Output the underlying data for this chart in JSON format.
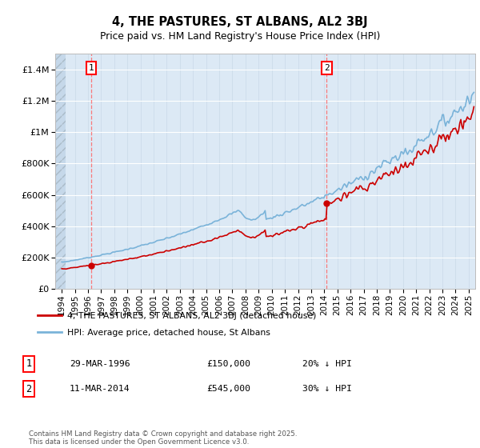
{
  "title": "4, THE PASTURES, ST ALBANS, AL2 3BJ",
  "subtitle": "Price paid vs. HM Land Registry's House Price Index (HPI)",
  "background_color": "#dce9f5",
  "hpi_color": "#7ab3d9",
  "price_color": "#cc0000",
  "dashed_vline_color": "#ff6666",
  "ylim": [
    0,
    1500000
  ],
  "yticks": [
    0,
    200000,
    400000,
    600000,
    800000,
    1000000,
    1200000,
    1400000
  ],
  "transaction1": {
    "date_x": 1996.23,
    "price": 150000,
    "label": "1",
    "annotation": "29-MAR-1996",
    "annotation2": "£150,000",
    "annotation3": "20% ↓ HPI"
  },
  "transaction2": {
    "date_x": 2014.19,
    "price": 545000,
    "label": "2",
    "annotation": "11-MAR-2014",
    "annotation2": "£545,000",
    "annotation3": "30% ↓ HPI"
  },
  "legend1": "4, THE PASTURES, ST ALBANS, AL2 3BJ (detached house)",
  "legend2": "HPI: Average price, detached house, St Albans",
  "footer": "Contains HM Land Registry data © Crown copyright and database right 2025.\nThis data is licensed under the Open Government Licence v3.0.",
  "xlim": [
    1993.5,
    2025.5
  ],
  "xticks": [
    1994,
    1995,
    1996,
    1997,
    1998,
    1999,
    2000,
    2001,
    2002,
    2003,
    2004,
    2005,
    2006,
    2007,
    2008,
    2009,
    2010,
    2011,
    2012,
    2013,
    2014,
    2015,
    2016,
    2017,
    2018,
    2019,
    2020,
    2021,
    2022,
    2023,
    2024,
    2025
  ]
}
